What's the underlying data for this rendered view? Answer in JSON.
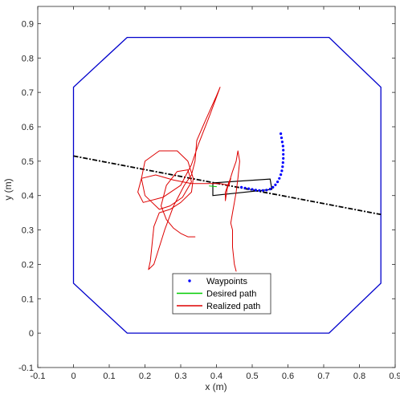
{
  "chart_data": {
    "type": "line",
    "xlabel": "x (m)",
    "ylabel": "y (m)",
    "xlim": [
      -0.1,
      0.9
    ],
    "ylim": [
      -0.1,
      0.95
    ],
    "x_ticks": [
      "-0.1",
      "0",
      "0.1",
      "0.2",
      "0.3",
      "0.4",
      "0.5",
      "0.6",
      "0.7",
      "0.8",
      "0.9"
    ],
    "y_ticks": [
      "-0.1",
      "0",
      "0.1",
      "0.2",
      "0.3",
      "0.4",
      "0.5",
      "0.6",
      "0.7",
      "0.8",
      "0.9"
    ],
    "grid": false,
    "legend_position": "bottom-center",
    "boundary": {
      "color": "#0000cc",
      "points": [
        [
          0.15,
          0
        ],
        [
          0.715,
          0
        ],
        [
          0.86,
          0.145
        ],
        [
          0.86,
          0.715
        ],
        [
          0.715,
          0.86
        ],
        [
          0.15,
          0.86
        ],
        [
          0,
          0.715
        ],
        [
          0,
          0.145
        ]
      ]
    },
    "reference_line": {
      "color": "#000000",
      "points": [
        [
          0,
          0.515
        ],
        [
          0.86,
          0.345
        ]
      ]
    },
    "robot_box": {
      "color": "#000000",
      "points": [
        [
          0.39,
          0.4
        ],
        [
          0.555,
          0.418
        ],
        [
          0.55,
          0.448
        ],
        [
          0.39,
          0.437
        ]
      ]
    },
    "series": [
      {
        "name": "Waypoints",
        "color": "#0000ff",
        "marker": "dot",
        "points": [
          [
            0.58,
            0.58
          ],
          [
            0.582,
            0.568
          ],
          [
            0.584,
            0.556
          ],
          [
            0.586,
            0.544
          ],
          [
            0.587,
            0.532
          ],
          [
            0.587,
            0.52
          ],
          [
            0.587,
            0.508
          ],
          [
            0.586,
            0.496
          ],
          [
            0.585,
            0.484
          ],
          [
            0.583,
            0.472
          ],
          [
            0.58,
            0.461
          ],
          [
            0.576,
            0.45
          ],
          [
            0.571,
            0.44
          ],
          [
            0.565,
            0.431
          ],
          [
            0.558,
            0.424
          ],
          [
            0.55,
            0.419
          ],
          [
            0.54,
            0.416
          ],
          [
            0.53,
            0.415
          ],
          [
            0.52,
            0.415
          ],
          [
            0.51,
            0.416
          ],
          [
            0.5,
            0.418
          ],
          [
            0.49,
            0.42
          ],
          [
            0.48,
            0.422
          ],
          [
            0.47,
            0.424
          ]
        ]
      },
      {
        "name": "Desired path",
        "color": "#00cc00",
        "marker": "none",
        "points": [
          [
            0.38,
            0.428
          ],
          [
            0.4,
            0.426
          ]
        ]
      },
      {
        "name": "Realized path",
        "color": "#dd0000",
        "marker": "none",
        "points": [
          [
            0.34,
            0.28
          ],
          [
            0.32,
            0.28
          ],
          [
            0.3,
            0.29
          ],
          [
            0.28,
            0.305
          ],
          [
            0.26,
            0.33
          ],
          [
            0.245,
            0.37
          ],
          [
            0.26,
            0.43
          ],
          [
            0.29,
            0.47
          ],
          [
            0.32,
            0.475
          ],
          [
            0.33,
            0.44
          ],
          [
            0.305,
            0.395
          ],
          [
            0.27,
            0.37
          ],
          [
            0.24,
            0.36
          ],
          [
            0.2,
            0.4
          ],
          [
            0.19,
            0.45
          ],
          [
            0.2,
            0.5
          ],
          [
            0.24,
            0.53
          ],
          [
            0.29,
            0.53
          ],
          [
            0.32,
            0.5
          ],
          [
            0.335,
            0.45
          ],
          [
            0.33,
            0.41
          ],
          [
            0.3,
            0.38
          ],
          [
            0.27,
            0.36
          ],
          [
            0.24,
            0.35
          ],
          [
            0.225,
            0.31
          ],
          [
            0.215,
            0.21
          ],
          [
            0.21,
            0.185
          ],
          [
            0.225,
            0.2
          ],
          [
            0.255,
            0.3
          ],
          [
            0.28,
            0.37
          ],
          [
            0.31,
            0.43
          ],
          [
            0.33,
            0.46
          ],
          [
            0.34,
            0.5
          ],
          [
            0.345,
            0.56
          ],
          [
            0.37,
            0.62
          ],
          [
            0.4,
            0.69
          ],
          [
            0.41,
            0.715
          ],
          [
            0.405,
            0.7
          ],
          [
            0.38,
            0.63
          ],
          [
            0.35,
            0.55
          ],
          [
            0.33,
            0.49
          ],
          [
            0.3,
            0.43
          ],
          [
            0.25,
            0.395
          ],
          [
            0.195,
            0.38
          ],
          [
            0.18,
            0.41
          ],
          [
            0.19,
            0.45
          ],
          [
            0.23,
            0.46
          ],
          [
            0.28,
            0.445
          ],
          [
            0.33,
            0.435
          ],
          [
            0.37,
            0.435
          ],
          [
            0.41,
            0.435
          ],
          [
            0.435,
            0.43
          ],
          [
            0.44,
            0.45
          ],
          [
            0.435,
            0.44
          ],
          [
            0.425,
            0.41
          ],
          [
            0.425,
            0.385
          ],
          [
            0.43,
            0.42
          ],
          [
            0.445,
            0.47
          ],
          [
            0.455,
            0.5
          ],
          [
            0.46,
            0.53
          ],
          [
            0.465,
            0.5
          ],
          [
            0.46,
            0.45
          ],
          [
            0.455,
            0.41
          ],
          [
            0.45,
            0.38
          ],
          [
            0.445,
            0.35
          ],
          [
            0.44,
            0.32
          ],
          [
            0.445,
            0.3
          ],
          [
            0.445,
            0.25
          ],
          [
            0.45,
            0.2
          ],
          [
            0.455,
            0.18
          ]
        ]
      }
    ],
    "legend": [
      {
        "label": "Waypoints",
        "style": "dot",
        "color": "#0000ff"
      },
      {
        "label": "Desired path",
        "style": "line",
        "color": "#00cc00"
      },
      {
        "label": "Realized path",
        "style": "line",
        "color": "#dd0000"
      }
    ]
  }
}
